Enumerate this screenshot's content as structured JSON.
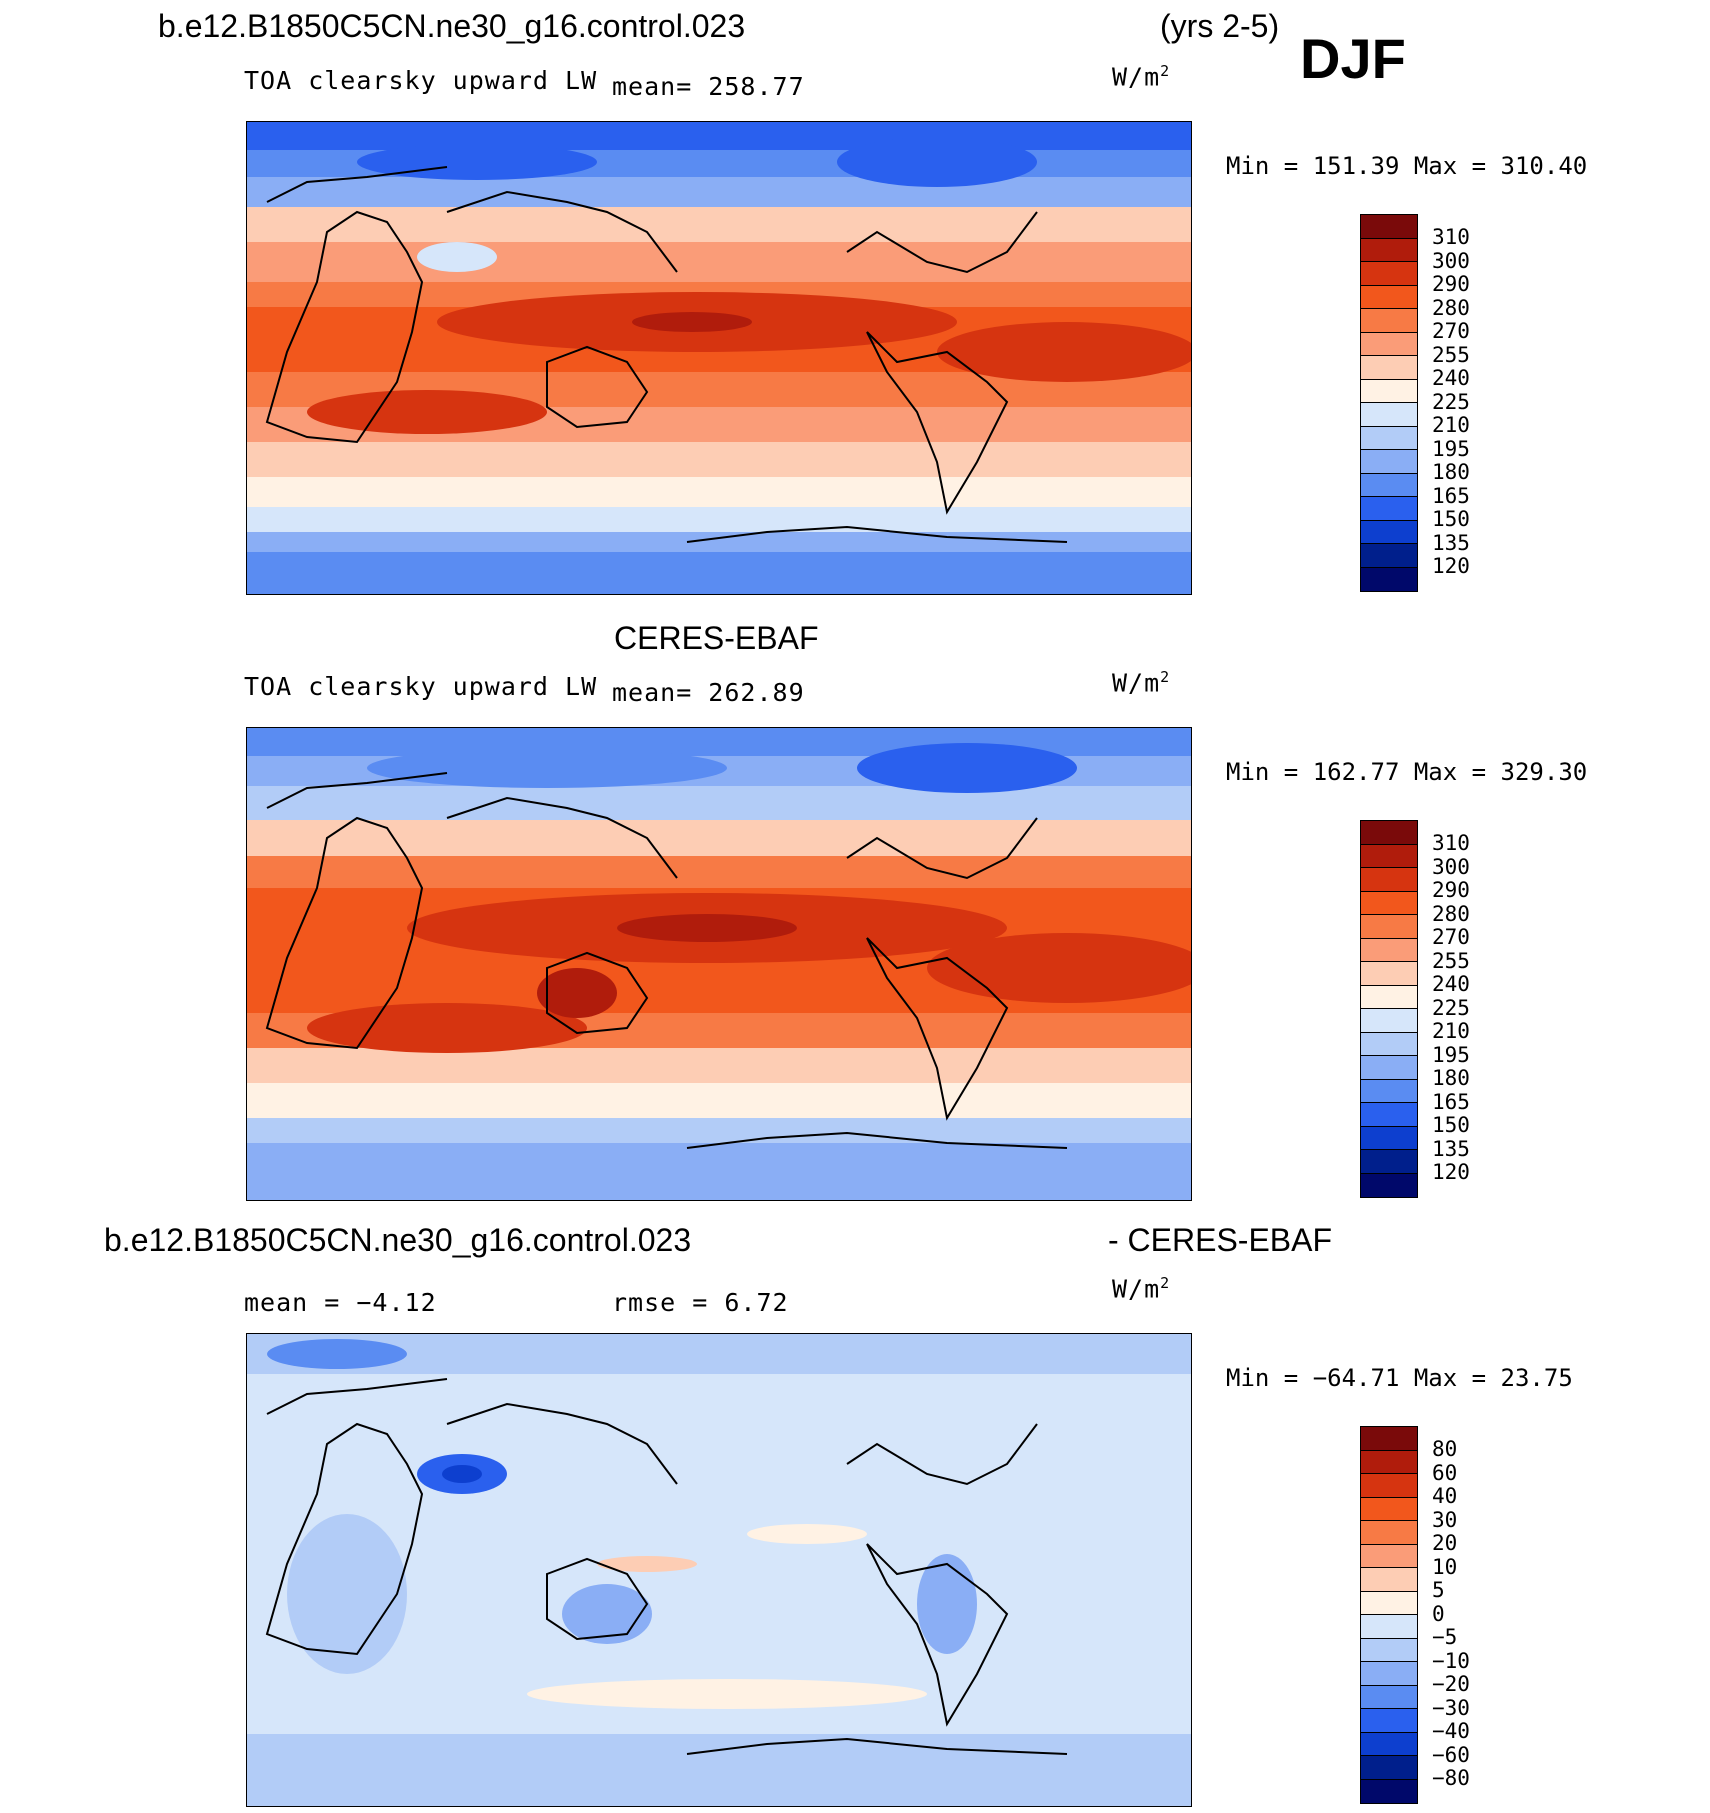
{
  "header": {
    "case_name": "b.e12.B1850C5CN.ne30_g16.control.023",
    "years": "(yrs 2-5)",
    "season": "DJF"
  },
  "panels": [
    {
      "variable": "TOA clearsky upward LW",
      "mean_text": "mean=  258.77",
      "units": "W/m",
      "units_sup": "2",
      "minmax": "Min  =  151.39  Max  =  310.40",
      "colorbar_labels": [
        "310",
        "300",
        "290",
        "280",
        "270",
        "255",
        "240",
        "225",
        "210",
        "195",
        "180",
        "165",
        "150",
        "135",
        "120"
      ]
    },
    {
      "title": "CERES-EBAF",
      "variable": "TOA clearsky upward LW",
      "mean_text": "mean=  262.89",
      "units": "W/m",
      "units_sup": "2",
      "minmax": "Min  =  162.77  Max  =  329.30",
      "colorbar_labels": [
        "310",
        "300",
        "290",
        "280",
        "270",
        "255",
        "240",
        "225",
        "210",
        "195",
        "180",
        "165",
        "150",
        "135",
        "120"
      ]
    },
    {
      "title_left": "b.e12.B1850C5CN.ne30_g16.control.023",
      "title_right": "- CERES-EBAF",
      "mean_text": "mean  =   −4.12",
      "rmse_text": "rmse  =    6.72",
      "units": "W/m",
      "units_sup": "2",
      "minmax": "Min  =  −64.71  Max  =   23.75",
      "colorbar_labels": [
        "80",
        "60",
        "40",
        "30",
        "20",
        "10",
        "5",
        "0",
        "−5",
        "−10",
        "−20",
        "−30",
        "−40",
        "−60",
        "−80"
      ]
    }
  ],
  "colors": {
    "field_scale": [
      "#7a0a0a",
      "#b01c0c",
      "#d63410",
      "#f2571c",
      "#f77a45",
      "#fa9c78",
      "#fdcdb4",
      "#fff2e4",
      "#d6e6fa",
      "#b2ccf7",
      "#8aaef5",
      "#5a8cf2",
      "#2a60ee",
      "#0d3fcf",
      "#001f8c",
      "#00086a"
    ],
    "diff_scale": [
      "#7a0a0a",
      "#b01c0c",
      "#d63410",
      "#f2571c",
      "#f77a45",
      "#fa9c78",
      "#fdcdb4",
      "#fff2e4",
      "#d6e6fa",
      "#b2ccf7",
      "#8aaef5",
      "#5a8cf2",
      "#2a60ee",
      "#0d3fcf",
      "#001f8c",
      "#00086a"
    ]
  }
}
